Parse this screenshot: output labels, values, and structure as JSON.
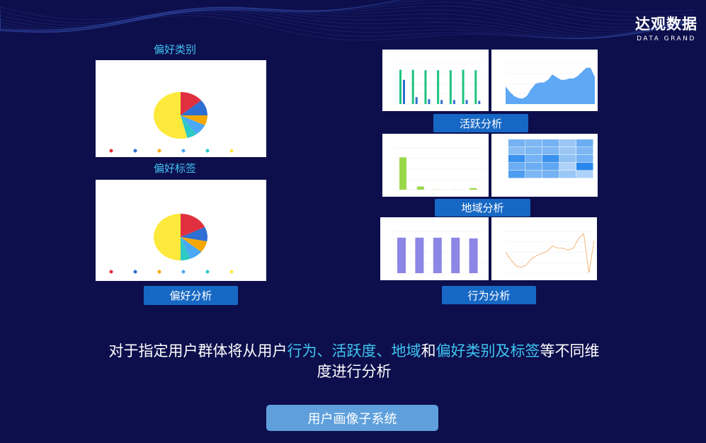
{
  "logo": {
    "cn": "达观数据",
    "en": "DATA GRAND"
  },
  "left": {
    "category_label": "偏好类别",
    "tag_label": "偏好标签",
    "button": "偏好分析",
    "pie1": {
      "values": [
        14,
        11,
        7,
        8,
        6,
        54
      ]
    },
    "pie2": {
      "values": [
        18,
        10,
        8,
        8,
        6,
        50
      ]
    },
    "pie_colors": [
      "#e0303f",
      "#2d6fd2",
      "#f6a800",
      "#4aa8f5",
      "#2ec9c4",
      "#fde93c"
    ]
  },
  "right": {
    "active_button": "活跃分析",
    "region_button": "地域分析",
    "behavior_button": "行为分析",
    "active_bars": {
      "green": [
        85000,
        85000,
        84000,
        84000,
        84000,
        85000,
        84000
      ],
      "blue": [
        60000,
        17000,
        12000,
        10000,
        10000,
        10000,
        8000
      ],
      "ymax": 100000
    },
    "active_area": {
      "values": [
        13000,
        9000,
        6000,
        4500,
        4000,
        6000,
        11000,
        15000,
        16000,
        16000,
        18000,
        22000,
        20000,
        18000,
        18000,
        19000,
        19000,
        21000,
        24000,
        27000,
        27000,
        20000
      ],
      "ymax": 30000
    },
    "region_bars": {
      "values": [
        620000,
        60000,
        3000,
        3000,
        30000
      ],
      "ymax": 800000
    },
    "region_heatmap": [
      [
        0.55,
        0.5,
        0.55,
        0.35,
        0.6
      ],
      [
        0.45,
        0.5,
        0.5,
        0.35,
        0.5
      ],
      [
        0.85,
        0.55,
        0.85,
        0.4,
        0.55
      ],
      [
        0.6,
        0.6,
        0.65,
        0.25,
        0.95
      ],
      [
        0.75,
        0.5,
        0.55,
        0.35,
        0.25
      ]
    ],
    "behavior_bars": {
      "values": [
        25500,
        25500,
        25500,
        25500,
        25000
      ],
      "ymax": 30000
    },
    "behavior_line": {
      "values": [
        200000,
        130000,
        70000,
        55000,
        80000,
        140000,
        170000,
        190000,
        210000,
        260000,
        240000,
        240000,
        220000,
        240000,
        330000,
        380000,
        5000,
        310000
      ],
      "ymax": 400000
    }
  },
  "description": {
    "p1": "对于指定用户群体将从用户",
    "h1": "行为、活跃度、地域",
    "p2": "和",
    "h2": "偏好类别及标签",
    "p3": "等不同维度进行分析"
  },
  "main_button": "用户画像子系统"
}
